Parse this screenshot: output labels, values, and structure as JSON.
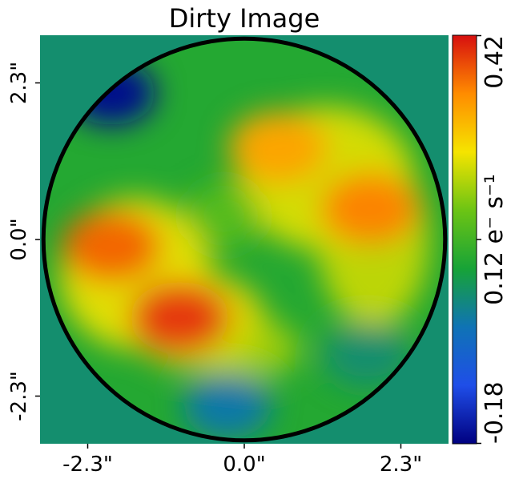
{
  "chart_data": {
    "type": "heatmap",
    "title": "Dirty Image",
    "x_ticks": [
      "-2.3\"",
      "0.0\"",
      "2.3\""
    ],
    "x_tick_values": [
      -2.3,
      0.0,
      2.3
    ],
    "y_ticks": [
      "2.3\"",
      "0.0\"",
      "-2.3\""
    ],
    "y_tick_values": [
      2.3,
      0.0,
      -2.3
    ],
    "xlim": [
      -3.0,
      3.0
    ],
    "ylim": [
      -3.0,
      3.0
    ],
    "colorbar": {
      "min_label": "-0.18",
      "max_label": "0.42",
      "mid_label": "0.12 e⁻ s⁻¹",
      "vmin": -0.18,
      "vmax": 0.42,
      "mid_value": 0.12,
      "colormap_colors": [
        "#000080",
        "#1f4ee8",
        "#0f73b5",
        "#17a337",
        "#6cc414",
        "#f5e400",
        "#ff8c00",
        "#d70f0f"
      ]
    },
    "mask_radius_arcsec": 2.95,
    "background_value": 0.04,
    "features": [
      {
        "x": -1.95,
        "y": -0.1,
        "value": 0.36
      },
      {
        "x": -0.95,
        "y": -1.15,
        "value": 0.39
      },
      {
        "x": 0.5,
        "y": 1.35,
        "value": 0.31
      },
      {
        "x": 1.85,
        "y": 0.45,
        "value": 0.34
      },
      {
        "x": -1.95,
        "y": 2.15,
        "value": -0.17
      },
      {
        "x": -0.25,
        "y": -2.45,
        "value": 0.0
      },
      {
        "x": 1.8,
        "y": -1.7,
        "value": 0.04
      },
      {
        "x": -0.3,
        "y": 0.35,
        "value": 0.14
      }
    ]
  }
}
